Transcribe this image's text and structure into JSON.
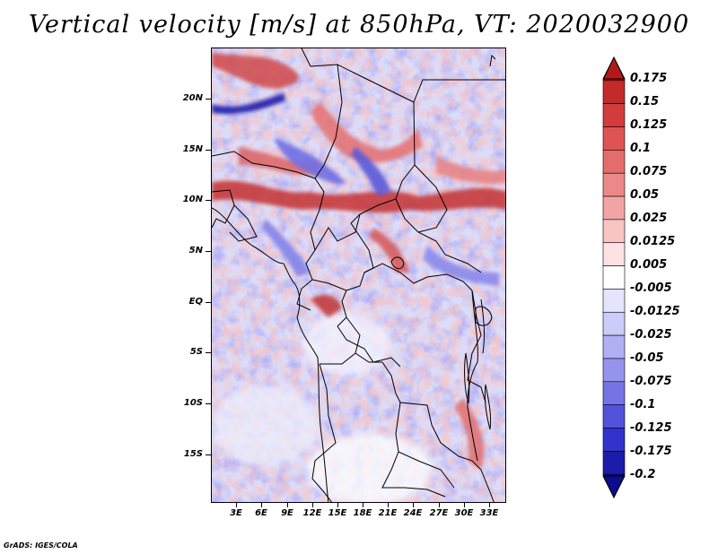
{
  "title": "Vertical velocity [m/s] at 850hPa, VT: 2020032900",
  "map": {
    "lat_labels": [
      "20N",
      "15N",
      "10N",
      "5N",
      "EQ",
      "5S",
      "10S",
      "15S"
    ],
    "lon_labels": [
      "3E",
      "6E",
      "9E",
      "12E",
      "15E",
      "18E",
      "21E",
      "24E",
      "27E",
      "30E",
      "33E"
    ]
  },
  "colorbar": {
    "levels": [
      "0.175",
      "0.15",
      "0.125",
      "0.1",
      "0.075",
      "0.05",
      "0.025",
      "0.0125",
      "0.005",
      "-0.005",
      "-0.0125",
      "-0.025",
      "-0.05",
      "-0.075",
      "-0.1",
      "-0.125",
      "-0.175",
      "-0.2"
    ],
    "colors": [
      "#b21a1a",
      "#c42a2a",
      "#d23c3c",
      "#de5454",
      "#e46c6c",
      "#ec8888",
      "#f2a4a4",
      "#f8c4c4",
      "#fce2e2",
      "#ffffff",
      "#e4e4fc",
      "#ccccf8",
      "#b0b0f4",
      "#9494ee",
      "#7474e6",
      "#5252da",
      "#3232cc",
      "#1c1caa",
      "#0c0c90"
    ]
  },
  "footer": "GrADS: IGES/COLA"
}
